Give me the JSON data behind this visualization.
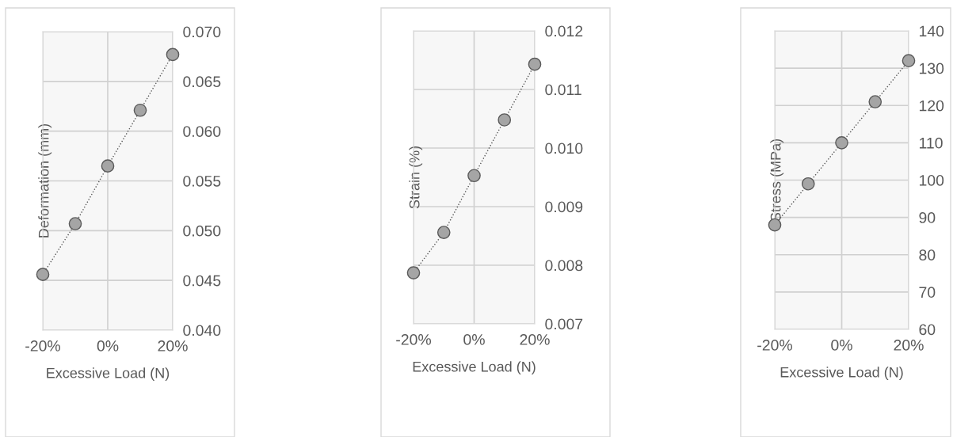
{
  "chart_data": [
    {
      "type": "line",
      "xlabel": "Excessive Load (N)",
      "ylabel": "Deformation (mm)",
      "x": [
        -20,
        -10,
        0,
        10,
        20
      ],
      "series": [
        {
          "color": "#a5a5a5",
          "values": [
            0.0456,
            0.0507,
            0.0565,
            0.0621,
            0.0677
          ]
        }
      ],
      "xlim": [
        -20,
        20
      ],
      "xticks": [
        {
          "value": -20,
          "label": "-20%"
        },
        {
          "value": 0,
          "label": "0%"
        },
        {
          "value": 20,
          "label": "20%"
        }
      ],
      "ylim": [
        0.04,
        0.07
      ],
      "yticks": [
        {
          "value": 0.04,
          "label": "0.040"
        },
        {
          "value": 0.045,
          "label": "0.045"
        },
        {
          "value": 0.05,
          "label": "0.050"
        },
        {
          "value": 0.055,
          "label": "0.055"
        },
        {
          "value": 0.06,
          "label": "0.060"
        },
        {
          "value": 0.065,
          "label": "0.065"
        },
        {
          "value": 0.07,
          "label": "0.070"
        }
      ],
      "grid": true,
      "marker": "circle",
      "line_style": "dotted"
    },
    {
      "type": "line",
      "xlabel": "Excessive Load (N)",
      "ylabel": "Strain (%)",
      "x": [
        -20,
        -10,
        0,
        10,
        20
      ],
      "series": [
        {
          "color": "#a5a5a5",
          "values": [
            0.00787,
            0.00856,
            0.00953,
            0.01048,
            0.01143
          ]
        }
      ],
      "xlim": [
        -20,
        20
      ],
      "xticks": [
        {
          "value": -20,
          "label": "-20%"
        },
        {
          "value": 0,
          "label": "0%"
        },
        {
          "value": 20,
          "label": "20%"
        }
      ],
      "ylim": [
        0.007,
        0.012
      ],
      "yticks": [
        {
          "value": 0.007,
          "label": "0.007"
        },
        {
          "value": 0.008,
          "label": "0.008"
        },
        {
          "value": 0.009,
          "label": "0.009"
        },
        {
          "value": 0.01,
          "label": "0.010"
        },
        {
          "value": 0.011,
          "label": "0.011"
        },
        {
          "value": 0.012,
          "label": "0.012"
        }
      ],
      "grid": true,
      "marker": "circle",
      "line_style": "dotted"
    },
    {
      "type": "line",
      "xlabel": "Excessive Load (N)",
      "ylabel": "Stress (MPa)",
      "x": [
        -20,
        -10,
        0,
        10,
        20
      ],
      "series": [
        {
          "color": "#a5a5a5",
          "values": [
            88,
            99,
            110,
            121,
            132
          ]
        }
      ],
      "xlim": [
        -20,
        20
      ],
      "xticks": [
        {
          "value": -20,
          "label": "-20%"
        },
        {
          "value": 0,
          "label": "0%"
        },
        {
          "value": 20,
          "label": "20%"
        }
      ],
      "ylim": [
        60,
        140
      ],
      "yticks": [
        60,
        70,
        80,
        90,
        100,
        110,
        120,
        130,
        140
      ],
      "grid": true,
      "marker": "circle",
      "line_style": "dotted"
    }
  ]
}
